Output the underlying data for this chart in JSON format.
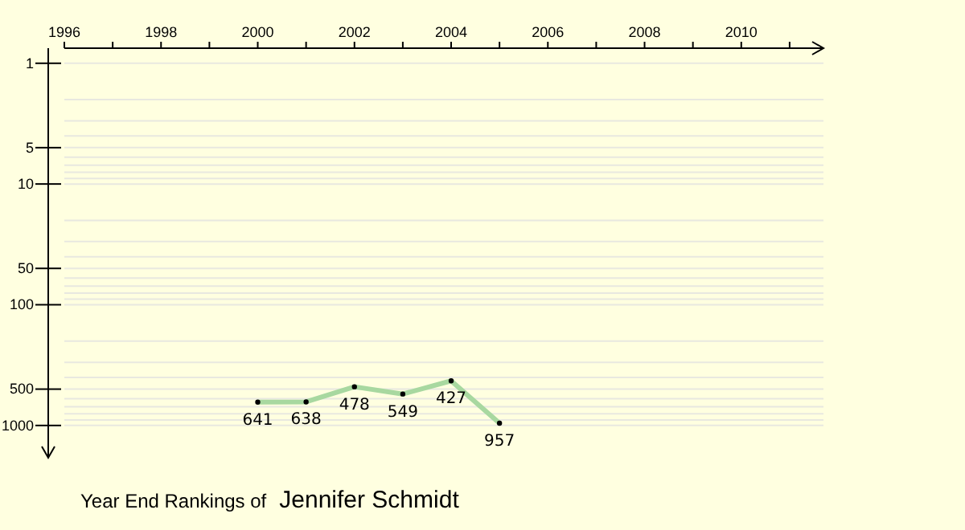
{
  "chart_data": {
    "type": "line",
    "title": "Year End Rankings of",
    "subtitle": "Jennifer Schmidt",
    "x": [
      2000,
      2001,
      2002,
      2003,
      2004,
      2005
    ],
    "series": [
      {
        "color": "#a8d8a0",
        "values": [
          641,
          638,
          478,
          549,
          427,
          957
        ]
      }
    ],
    "data_labels": true,
    "marker": "circle",
    "line_style": "solid",
    "log": "y",
    "grid": "y",
    "xlim": [
      1996,
      2011.7
    ],
    "xticks": [
      1996,
      {
        "value": 1997,
        "label": null
      },
      1998,
      {
        "value": 1999,
        "label": null
      },
      2000,
      {
        "value": 2001,
        "label": null
      },
      2002,
      {
        "value": 2003,
        "label": null
      },
      2004,
      {
        "value": 2005,
        "label": null
      },
      2006,
      {
        "value": 2007,
        "label": null
      },
      2008,
      {
        "value": 2009,
        "label": null
      },
      2010,
      {
        "value": 2011,
        "label": null
      }
    ],
    "ylim": [
      1850,
      0.75
    ],
    "yticks": [
      1,
      {
        "value": 2,
        "label": null
      },
      {
        "value": 3,
        "label": null
      },
      {
        "value": 4,
        "label": null
      },
      5,
      {
        "value": 6,
        "label": null
      },
      {
        "value": 7,
        "label": null
      },
      {
        "value": 8,
        "label": null
      },
      {
        "value": 9,
        "label": null
      },
      10,
      {
        "value": 20,
        "label": null
      },
      {
        "value": 30,
        "label": null
      },
      {
        "value": 40,
        "label": null
      },
      50,
      {
        "value": 60,
        "label": null
      },
      {
        "value": 70,
        "label": null
      },
      {
        "value": 80,
        "label": null
      },
      {
        "value": 90,
        "label": null
      },
      100,
      {
        "value": 200,
        "label": null
      },
      {
        "value": 300,
        "label": null
      },
      {
        "value": 400,
        "label": null
      },
      500,
      {
        "value": 600,
        "label": null
      },
      {
        "value": 700,
        "label": null
      },
      {
        "value": 800,
        "label": null
      },
      {
        "value": 900,
        "label": null
      },
      1000
    ]
  }
}
